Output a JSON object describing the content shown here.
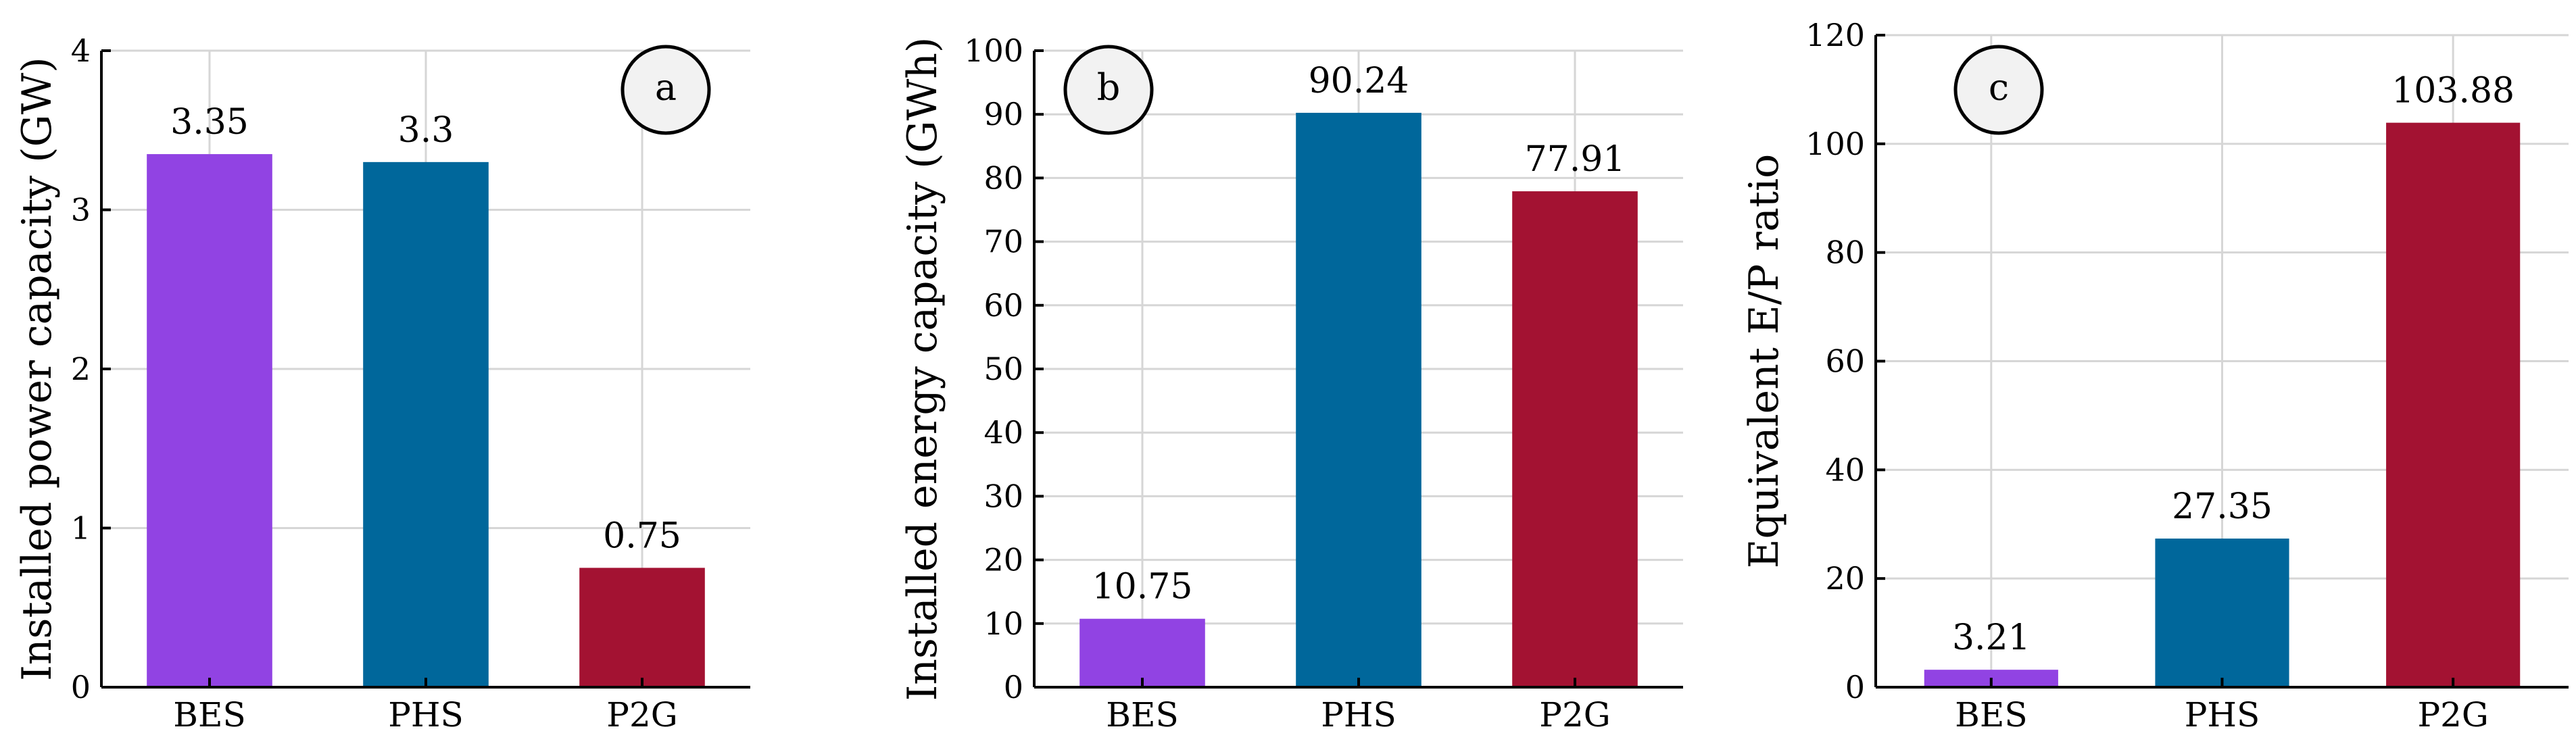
{
  "chart_data": [
    {
      "type": "bar",
      "panel": "a",
      "title": "",
      "xlabel": "",
      "ylabel": "Installed power capacity (GW)",
      "categories": [
        "BES",
        "PHS",
        "P2G"
      ],
      "values": [
        3.35,
        3.3,
        0.75
      ],
      "value_labels": [
        "3.35",
        "3.3",
        "0.75"
      ],
      "colors": [
        "#9143e3",
        "#00679b",
        "#a31232"
      ],
      "ylim": [
        0,
        4
      ],
      "yticks": [
        0,
        1,
        2,
        3,
        4
      ],
      "grid": true,
      "legend": "none"
    },
    {
      "type": "bar",
      "panel": "b",
      "title": "",
      "xlabel": "",
      "ylabel": "Installed energy capacity (GWh)",
      "categories": [
        "BES",
        "PHS",
        "P2G"
      ],
      "values": [
        10.75,
        90.24,
        77.91
      ],
      "value_labels": [
        "10.75",
        "90.24",
        "77.91"
      ],
      "colors": [
        "#9143e3",
        "#00679b",
        "#a31232"
      ],
      "ylim": [
        0,
        100
      ],
      "yticks": [
        0,
        10,
        20,
        30,
        40,
        50,
        60,
        70,
        80,
        90,
        100
      ],
      "grid": true,
      "legend": "none"
    },
    {
      "type": "bar",
      "panel": "c",
      "title": "",
      "xlabel": "",
      "ylabel": "Equivalent E/P ratio",
      "categories": [
        "BES",
        "PHS",
        "P2G"
      ],
      "values": [
        3.21,
        27.35,
        103.88
      ],
      "value_labels": [
        "3.21",
        "27.35",
        "103.88"
      ],
      "colors": [
        "#9143e3",
        "#00679b",
        "#a31232"
      ],
      "ylim": [
        0,
        120
      ],
      "yticks": [
        0,
        20,
        40,
        60,
        80,
        100,
        120
      ],
      "grid": true,
      "legend": "none"
    }
  ]
}
